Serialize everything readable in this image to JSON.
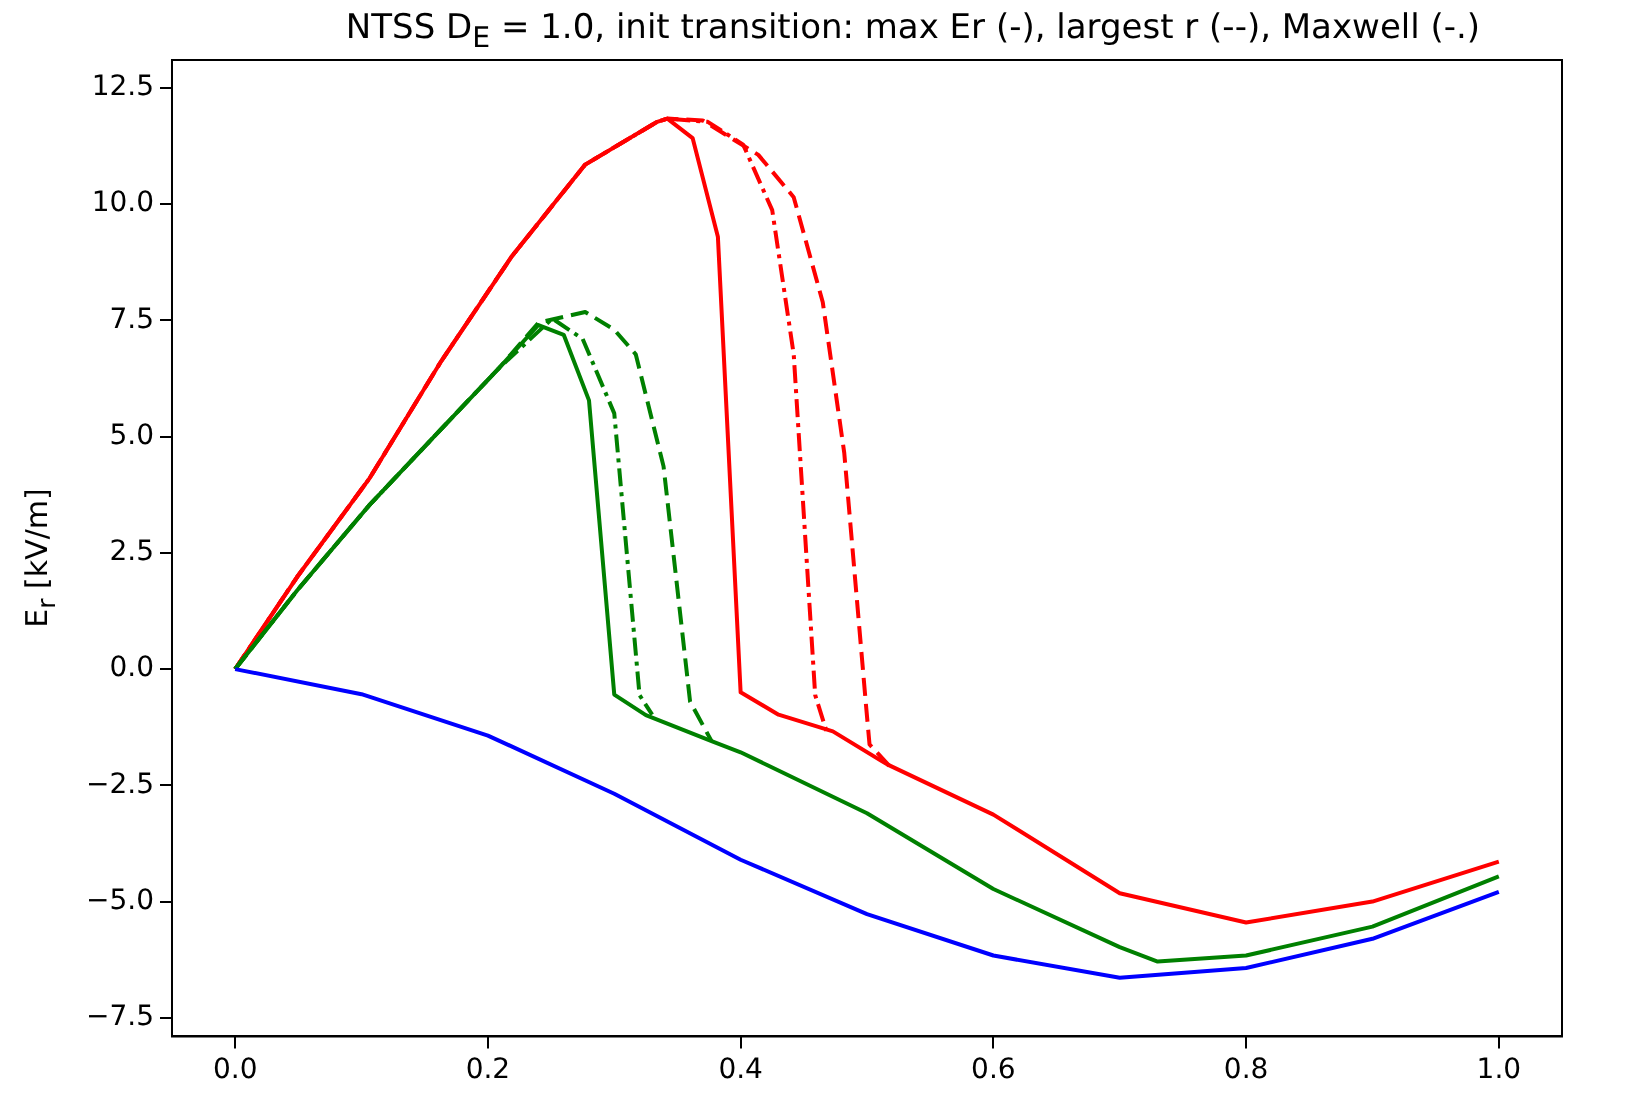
{
  "chart_data": {
    "type": "line",
    "title": "NTSS D$_{E}$ = 1.0, init transition: max Er (-), largest r (--), Maxwell (-.)",
    "ylabel": "E$_{r}$ [kV/m]",
    "xlim": [
      -0.05,
      1.05
    ],
    "xticks": [
      {
        "value": 0,
        "label": "0.0"
      },
      {
        "value": 0.2,
        "label": "0.2"
      },
      {
        "value": 0.4,
        "label": "0.4"
      },
      {
        "value": 0.6,
        "label": "0.6"
      },
      {
        "value": 0.8,
        "label": "0.8"
      },
      {
        "value": 1,
        "label": "1.0"
      }
    ],
    "ylim": [
      -7.9,
      13.1
    ],
    "yticks": [
      {
        "value": -7.5,
        "label": "−7.5"
      },
      {
        "value": -5,
        "label": "−5.0"
      },
      {
        "value": -2.5,
        "label": "−2.5"
      },
      {
        "value": 0,
        "label": "0.0"
      },
      {
        "value": 2.5,
        "label": "2.5"
      },
      {
        "value": 5,
        "label": "5.0"
      },
      {
        "value": 7.5,
        "label": "7.5"
      },
      {
        "value": 10,
        "label": "10.0"
      },
      {
        "value": 12.5,
        "label": "12.5"
      }
    ],
    "grid": false,
    "legend": false,
    "marker": "none",
    "series": [
      {
        "color": "#0000ff",
        "line_style": "solid",
        "x": [
          0,
          0.1,
          0.2,
          0.3,
          0.4,
          0.5,
          0.6,
          0.7,
          0.8,
          0.9,
          1.0
        ],
        "values": [
          0,
          -0.54,
          -1.43,
          -2.68,
          -4.1,
          -5.27,
          -6.16,
          -6.64,
          -6.43,
          -5.8,
          -4.79
        ]
      },
      {
        "color": "#008000",
        "line_style": "solid",
        "x": [
          0,
          0.049,
          0.106,
          0.163,
          0.209,
          0.24,
          0.26,
          0.28,
          0.3,
          0.325,
          0.377,
          0.4,
          0.5,
          0.6,
          0.7,
          0.73,
          0.8,
          0.9,
          1.0
        ],
        "values": [
          0,
          1.69,
          3.52,
          5.16,
          6.48,
          7.4,
          7.19,
          5.78,
          -0.55,
          -0.99,
          -1.55,
          -1.79,
          -3.1,
          -4.73,
          -5.98,
          -6.29,
          -6.16,
          -5.54,
          -4.46
        ]
      },
      {
        "color": "#008000",
        "line_style": "dashdot",
        "x": [
          0,
          0.049,
          0.106,
          0.163,
          0.209,
          0.251,
          0.275,
          0.3,
          0.32,
          0.33
        ],
        "values": [
          0,
          1.69,
          3.52,
          5.16,
          6.48,
          7.54,
          7.1,
          5.5,
          -0.56,
          -0.98
        ]
      },
      {
        "color": "#008000",
        "line_style": "dashed",
        "x": [
          0,
          0.049,
          0.106,
          0.163,
          0.209,
          0.24,
          0.277,
          0.3,
          0.317,
          0.339,
          0.36,
          0.377
        ],
        "values": [
          0,
          1.69,
          3.52,
          5.16,
          6.48,
          7.45,
          7.68,
          7.3,
          6.77,
          4.36,
          -0.7,
          -1.55
        ]
      },
      {
        "color": "#ff0000",
        "line_style": "solid",
        "x": [
          0,
          0.049,
          0.106,
          0.163,
          0.219,
          0.277,
          0.334,
          0.342,
          0.362,
          0.382,
          0.4,
          0.43,
          0.473,
          0.516,
          0.6,
          0.7,
          0.8,
          0.9,
          1.0
        ],
        "values": [
          0,
          1.98,
          4.09,
          6.62,
          8.88,
          10.85,
          11.77,
          11.84,
          11.42,
          9.3,
          -0.5,
          -0.98,
          -1.34,
          -2.05,
          -3.13,
          -4.82,
          -5.45,
          -5.0,
          -4.14
        ]
      },
      {
        "color": "#ff0000",
        "line_style": "dashdot",
        "x": [
          0,
          0.049,
          0.106,
          0.163,
          0.219,
          0.277,
          0.334,
          0.342,
          0.374,
          0.402,
          0.425,
          0.442,
          0.459,
          0.468
        ],
        "values": [
          0,
          1.98,
          4.09,
          6.62,
          8.88,
          10.85,
          11.77,
          11.84,
          11.77,
          11.28,
          9.87,
          6.77,
          -0.56,
          -1.34
        ]
      },
      {
        "color": "#ff0000",
        "line_style": "dashed",
        "x": [
          0,
          0.049,
          0.106,
          0.163,
          0.219,
          0.277,
          0.334,
          0.342,
          0.37,
          0.414,
          0.442,
          0.465,
          0.482,
          0.499,
          0.502,
          0.52
        ],
        "values": [
          0,
          1.98,
          4.09,
          6.62,
          8.88,
          10.85,
          11.77,
          11.84,
          11.8,
          11.06,
          10.15,
          7.89,
          4.65,
          -0.71,
          -1.62,
          -2.15
        ]
      }
    ]
  }
}
